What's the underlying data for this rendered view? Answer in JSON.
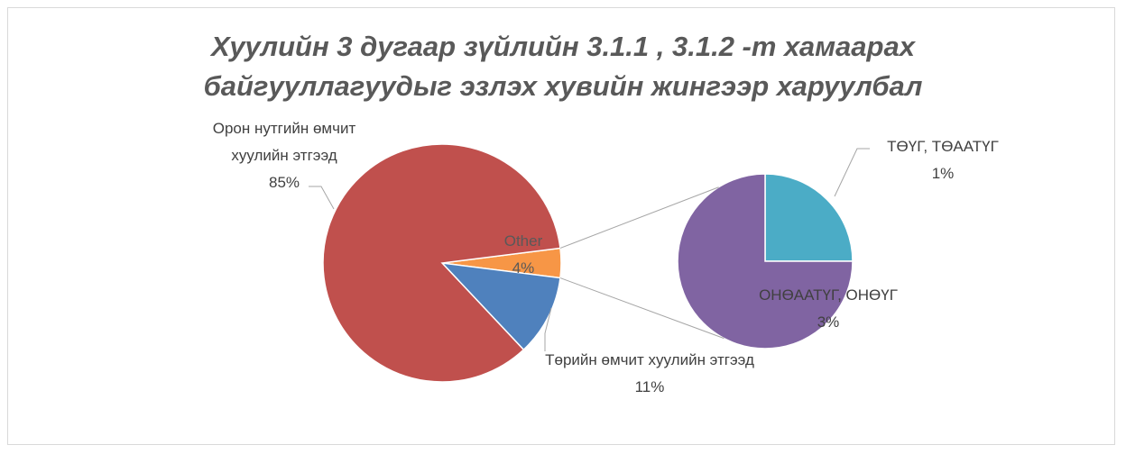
{
  "chart_data": {
    "type": "pie",
    "title": "Хуулийн 3 дугаар зүйлийн 3.1.1 , 3.1.2 -т хамаарах байгууллагуудыг эзлэх хувийн жингээр харуулбал",
    "categories": [
      "Орон нутгийн өмчит хуулийн этгээд",
      "Төрийн өмчит хуулийн этгээд",
      "Other"
    ],
    "values": [
      85,
      11,
      4
    ],
    "value_labels": [
      "85%",
      "11%",
      "4%"
    ],
    "colors": [
      "#c0504d",
      "#4f81bd",
      "#f79646"
    ],
    "secondary": {
      "categories": [
        "ТӨҮГ, ТӨААТҮГ",
        "ОНӨААТҮГ, ОНӨҮГ"
      ],
      "values": [
        1,
        3
      ],
      "value_labels": [
        "1%",
        "3%"
      ],
      "colors": [
        "#4bacc6",
        "#8064a2"
      ]
    }
  }
}
